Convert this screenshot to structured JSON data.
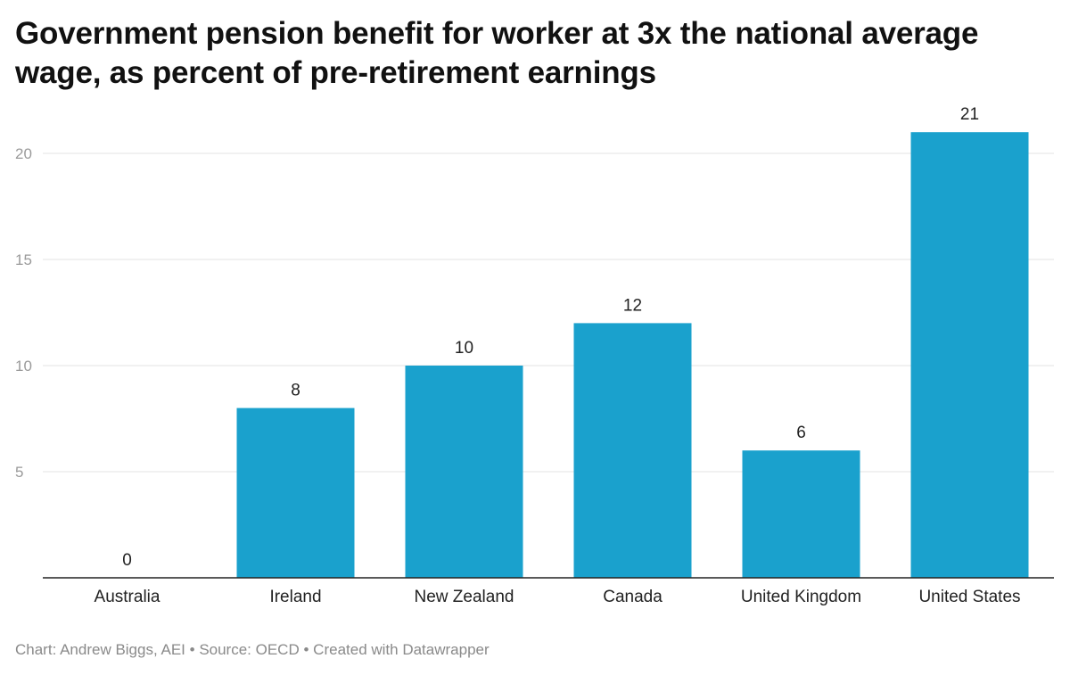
{
  "chart_data": {
    "type": "bar",
    "title": "Government pension benefit for worker at 3x the national average wage, as percent of pre-retirement earnings",
    "categories": [
      "Australia",
      "Ireland",
      "New Zealand",
      "Canada",
      "United Kingdom",
      "United States"
    ],
    "values": [
      0,
      8,
      10,
      12,
      6,
      21
    ],
    "value_labels": [
      "0",
      "8",
      "10",
      "12",
      "6",
      "21"
    ],
    "yticks": [
      5,
      10,
      15,
      20
    ],
    "ytick_labels": [
      "5",
      "10",
      "15",
      "20"
    ],
    "ylim": [
      0,
      21
    ],
    "xlabel": "",
    "ylabel": "",
    "grid": true,
    "bar_color": "#1aa1cd"
  },
  "footer": {
    "chart_credit": "Chart: Andrew Biggs, AEI",
    "separator": "•",
    "source": "Source: OECD",
    "created_with": "Created with Datawrapper"
  }
}
